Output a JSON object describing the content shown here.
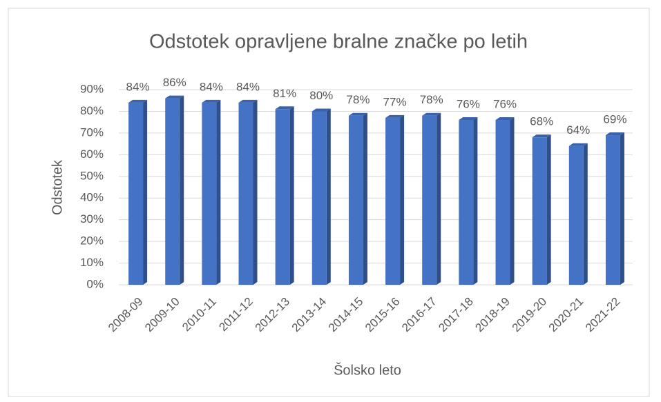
{
  "chart_data": {
    "type": "bar3d",
    "title": "Odstotek opravljene bralne značke po letih",
    "x_label": "Šolsko leto",
    "y_label": "Odstotek",
    "categories": [
      "2008-09",
      "2009-10",
      "2010-11",
      "2011-12",
      "2012-13",
      "2013-14",
      "2014-15",
      "2015-16",
      "2016-17",
      "2017-18",
      "2018-19",
      "2019-20",
      "2020-21",
      "2021-22"
    ],
    "values": [
      84,
      86,
      84,
      84,
      81,
      80,
      78,
      77,
      78,
      76,
      76,
      68,
      64,
      69
    ],
    "value_labels": [
      "84%",
      "86%",
      "84%",
      "84%",
      "81%",
      "80%",
      "78%",
      "77%",
      "78%",
      "76%",
      "76%",
      "68%",
      "64%",
      "69%"
    ],
    "color": "#4472c4",
    "ylim": [
      0,
      90
    ],
    "yticks": [
      {
        "value": 0,
        "label": "0%"
      },
      {
        "value": 10,
        "label": "10%"
      },
      {
        "value": 20,
        "label": "20%"
      },
      {
        "value": 30,
        "label": "30%"
      },
      {
        "value": 40,
        "label": "40%"
      },
      {
        "value": 50,
        "label": "50%"
      },
      {
        "value": 60,
        "label": "60%"
      },
      {
        "value": 70,
        "label": "70%"
      },
      {
        "value": 80,
        "label": "80%"
      },
      {
        "value": 90,
        "label": "90%"
      }
    ],
    "grid": true
  }
}
